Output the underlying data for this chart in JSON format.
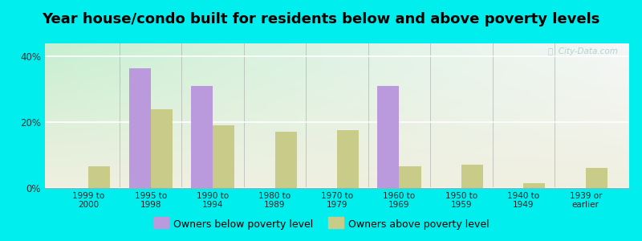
{
  "title": "Year house/condo built for residents below and above poverty levels",
  "categories": [
    "1999 to\n2000",
    "1995 to\n1998",
    "1990 to\n1994",
    "1980 to\n1989",
    "1970 to\n1979",
    "1960 to\n1969",
    "1950 to\n1959",
    "1940 to\n1949",
    "1939 or\nearlier"
  ],
  "below_poverty": [
    0,
    36.5,
    31.0,
    0,
    0,
    31.0,
    0,
    0,
    0
  ],
  "above_poverty": [
    6.5,
    24.0,
    19.0,
    17.0,
    17.5,
    6.5,
    7.0,
    1.5,
    6.0
  ],
  "below_color": "#bb99dd",
  "above_color": "#c8cc88",
  "ylim": [
    0,
    44
  ],
  "yticks": [
    0,
    20,
    40
  ],
  "ytick_labels": [
    "0%",
    "20%",
    "40%"
  ],
  "background_color": "#00eeee",
  "bar_width": 0.35,
  "title_fontsize": 13,
  "legend_below_label": "Owners below poverty level",
  "legend_above_label": "Owners above poverty level"
}
